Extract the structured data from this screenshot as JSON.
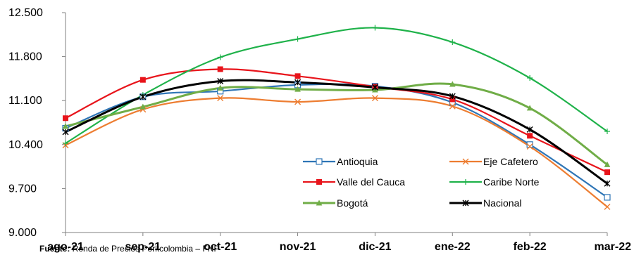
{
  "chart_data": {
    "type": "line",
    "title": "",
    "xlabel": "",
    "ylabel": "",
    "categories": [
      "ago-21",
      "sep-21",
      "oct-21",
      "nov-21",
      "dic-21",
      "ene-22",
      "feb-22",
      "mar-22"
    ],
    "y_ticks": [
      "9.000",
      "9.700",
      "10.400",
      "11.100",
      "11.800",
      "12.500"
    ],
    "ylim": [
      9000,
      12500
    ],
    "grid": false,
    "legend_position": "bottom-right",
    "series": [
      {
        "name": "Antioquia",
        "color": "#2E75B6",
        "marker": "square-open",
        "values": [
          10660,
          11160,
          11250,
          11350,
          11330,
          11070,
          10400,
          9560
        ]
      },
      {
        "name": "Eje Cafetero",
        "color": "#ED7D31",
        "marker": "x",
        "values": [
          10390,
          10960,
          11140,
          11080,
          11140,
          11010,
          10370,
          9410
        ]
      },
      {
        "name": "Valle del Cauca",
        "color": "#E8141B",
        "marker": "square-filled",
        "values": [
          10820,
          11430,
          11600,
          11490,
          11320,
          11120,
          10540,
          9960
        ]
      },
      {
        "name": "Caribe Norte",
        "color": "#1FB24A",
        "marker": "plus",
        "values": [
          10420,
          11190,
          11790,
          12080,
          12260,
          12030,
          11460,
          10610
        ]
      },
      {
        "name": "Bogotá",
        "color": "#70AD47",
        "marker": "triangle",
        "values": [
          10690,
          11000,
          11300,
          11280,
          11270,
          11360,
          10980,
          10080
        ]
      },
      {
        "name": "Nacional",
        "color": "#000000",
        "marker": "star",
        "values": [
          10600,
          11160,
          11410,
          11390,
          11310,
          11170,
          10640,
          9780
        ]
      }
    ]
  },
  "source": {
    "label": "Fuente:",
    "text": " Ronda  de Precios  Porkcolombia – FNP"
  }
}
